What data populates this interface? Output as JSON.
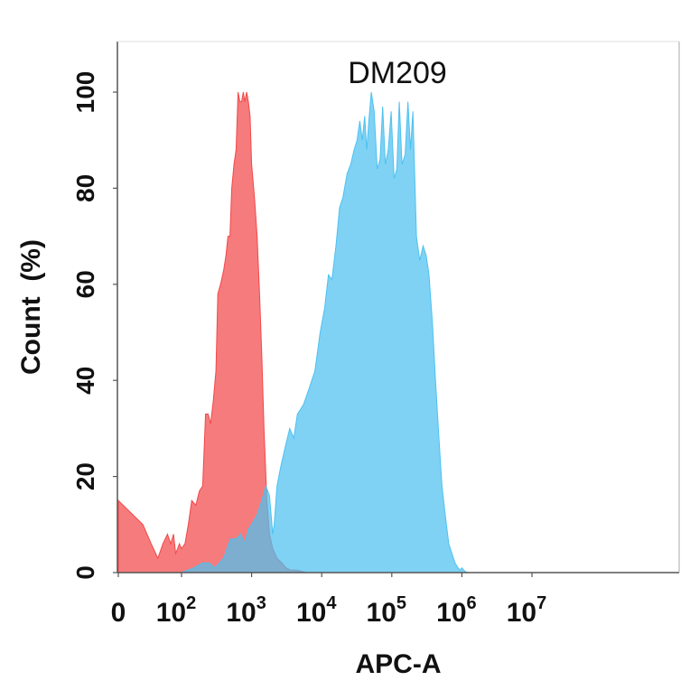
{
  "chart_data": {
    "type": "area",
    "title": "DM209",
    "xlabel": "APC-A",
    "ylabel": "Count  (%)",
    "x_scale": "biexponential",
    "xlim": [
      0,
      10000000
    ],
    "ylim": [
      0,
      100
    ],
    "x_ticks": [
      {
        "value": 0,
        "label": "0",
        "exp": ""
      },
      {
        "value": 100,
        "label": "10",
        "exp": "2"
      },
      {
        "value": 1000,
        "label": "10",
        "exp": "3"
      },
      {
        "value": 10000,
        "label": "10",
        "exp": "4"
      },
      {
        "value": 100000,
        "label": "10",
        "exp": "5"
      },
      {
        "value": 1000000,
        "label": "10",
        "exp": "6"
      },
      {
        "value": 10000000,
        "label": "10",
        "exp": "7"
      }
    ],
    "y_ticks": [
      "0",
      "20",
      "40",
      "60",
      "80",
      "100"
    ],
    "grid": false,
    "series": [
      {
        "color": "#f2484a",
        "opacity": 0.72,
        "points": [
          [
            0,
            15
          ],
          [
            5,
            10
          ],
          [
            10,
            6
          ],
          [
            17,
            3
          ],
          [
            25,
            6
          ],
          [
            35,
            8
          ],
          [
            45,
            6
          ],
          [
            55,
            8
          ],
          [
            65,
            4
          ],
          [
            75,
            5
          ],
          [
            85,
            6
          ],
          [
            100,
            5
          ],
          [
            112,
            6
          ],
          [
            125,
            10
          ],
          [
            140,
            15
          ],
          [
            160,
            14
          ],
          [
            180,
            17
          ],
          [
            200,
            18
          ],
          [
            220,
            33
          ],
          [
            240,
            33
          ],
          [
            260,
            31
          ],
          [
            285,
            36
          ],
          [
            310,
            42
          ],
          [
            330,
            58
          ],
          [
            360,
            60
          ],
          [
            400,
            63
          ],
          [
            430,
            66
          ],
          [
            460,
            70
          ],
          [
            490,
            70
          ],
          [
            520,
            80
          ],
          [
            560,
            85
          ],
          [
            600,
            88
          ],
          [
            640,
            100
          ],
          [
            680,
            98
          ],
          [
            720,
            98
          ],
          [
            760,
            100
          ],
          [
            800,
            98
          ],
          [
            850,
            100
          ],
          [
            900,
            98
          ],
          [
            950,
            95
          ],
          [
            1000,
            85
          ],
          [
            1100,
            78
          ],
          [
            1200,
            70
          ],
          [
            1300,
            58
          ],
          [
            1400,
            45
          ],
          [
            1500,
            30
          ],
          [
            1650,
            15
          ],
          [
            1800,
            8
          ],
          [
            2000,
            5
          ],
          [
            2300,
            3
          ],
          [
            2700,
            2
          ],
          [
            3100,
            1
          ],
          [
            3600,
            0.5
          ],
          [
            4500,
            0.5
          ],
          [
            6000,
            0
          ]
        ]
      },
      {
        "color": "#4ec1f0",
        "opacity": 0.72,
        "points": [
          [
            50,
            0
          ],
          [
            100,
            0
          ],
          [
            150,
            1
          ],
          [
            200,
            2
          ],
          [
            250,
            2
          ],
          [
            300,
            1
          ],
          [
            400,
            3
          ],
          [
            500,
            7
          ],
          [
            600,
            7
          ],
          [
            700,
            8
          ],
          [
            800,
            6
          ],
          [
            900,
            9
          ],
          [
            1000,
            10
          ],
          [
            1200,
            12
          ],
          [
            1400,
            15
          ],
          [
            1600,
            18
          ],
          [
            1800,
            16
          ],
          [
            2000,
            8
          ],
          [
            2100,
            10
          ],
          [
            2300,
            18
          ],
          [
            2600,
            22
          ],
          [
            3000,
            26
          ],
          [
            3500,
            30
          ],
          [
            4000,
            28
          ],
          [
            4500,
            33
          ],
          [
            5000,
            34
          ],
          [
            5500,
            35
          ],
          [
            6500,
            38
          ],
          [
            8000,
            42
          ],
          [
            9500,
            50
          ],
          [
            11000,
            55
          ],
          [
            12500,
            62
          ],
          [
            14000,
            61
          ],
          [
            16000,
            68
          ],
          [
            18000,
            76
          ],
          [
            20000,
            78
          ],
          [
            23000,
            83
          ],
          [
            26000,
            85
          ],
          [
            29000,
            88
          ],
          [
            32000,
            90
          ],
          [
            35000,
            94
          ],
          [
            38000,
            90
          ],
          [
            41000,
            95
          ],
          [
            44000,
            88
          ],
          [
            47000,
            94
          ],
          [
            51000,
            100
          ],
          [
            56000,
            96
          ],
          [
            62000,
            84
          ],
          [
            68000,
            86
          ],
          [
            74000,
            97
          ],
          [
            81000,
            85
          ],
          [
            89000,
            88
          ],
          [
            98000,
            96
          ],
          [
            108000,
            82
          ],
          [
            118000,
            84
          ],
          [
            128000,
            98
          ],
          [
            140000,
            85
          ],
          [
            155000,
            87
          ],
          [
            170000,
            98
          ],
          [
            185000,
            88
          ],
          [
            200000,
            96
          ],
          [
            225000,
            70
          ],
          [
            250000,
            65
          ],
          [
            280000,
            68
          ],
          [
            310000,
            66
          ],
          [
            340000,
            62
          ],
          [
            380000,
            52
          ],
          [
            420000,
            40
          ],
          [
            470000,
            28
          ],
          [
            520000,
            18
          ],
          [
            580000,
            12
          ],
          [
            650000,
            6
          ],
          [
            720000,
            4
          ],
          [
            800000,
            2
          ],
          [
            880000,
            1
          ],
          [
            950000,
            0.5
          ],
          [
            1000000,
            1
          ],
          [
            1100000,
            0.3
          ],
          [
            1200000,
            0
          ]
        ]
      }
    ]
  }
}
